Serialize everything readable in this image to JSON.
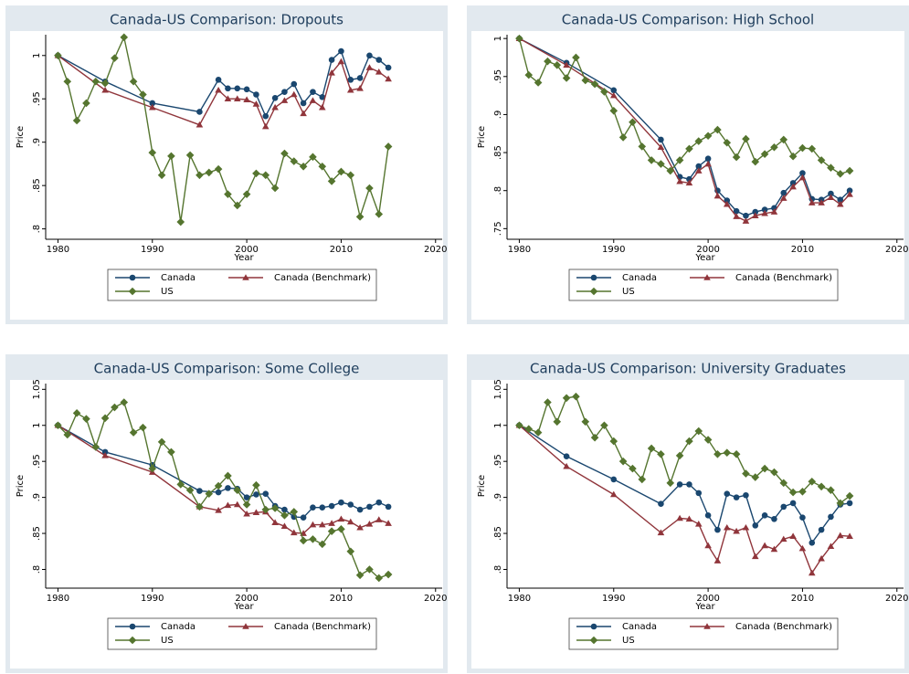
{
  "chart_data": [
    {
      "type": "line",
      "title": "Canada-US Comparison: Dropouts",
      "xlabel": "Year",
      "ylabel": "Price",
      "xlim": [
        1978.7,
        2020.7
      ],
      "ylim": [
        0.788,
        1.024
      ],
      "xticks": [
        1980,
        1990,
        2000,
        2010,
        2020
      ],
      "yticks": [
        {
          "value": 0.8,
          "label": ".8"
        },
        {
          "value": 0.85,
          "label": ".85"
        },
        {
          "value": 0.9,
          "label": ".9"
        },
        {
          "value": 0.95,
          "label": ".95"
        },
        1
      ],
      "grid": false,
      "series": [
        {
          "name": "Canada",
          "color": "#1a476f",
          "marker": "circle",
          "x": [
            1980,
            1985,
            1990,
            1995,
            1997,
            1998,
            1999,
            2000,
            2001,
            2002,
            2003,
            2004,
            2005,
            2006,
            2007,
            2008,
            2009,
            2010,
            2011,
            2012,
            2013,
            2014,
            2015
          ],
          "values": [
            1,
            0.97,
            0.945,
            0.935,
            0.972,
            0.962,
            0.962,
            0.961,
            0.955,
            0.93,
            0.951,
            0.958,
            0.967,
            0.945,
            0.958,
            0.952,
            0.995,
            1.005,
            0.972,
            0.974,
            1.0,
            0.995,
            0.986
          ]
        },
        {
          "name": "Canada (Benchmark)",
          "color": "#90353b",
          "marker": "triangle",
          "x": [
            1980,
            1985,
            1990,
            1995,
            1997,
            1998,
            1999,
            2000,
            2001,
            2002,
            2003,
            2004,
            2005,
            2006,
            2007,
            2008,
            2009,
            2010,
            2011,
            2012,
            2013,
            2014,
            2015
          ],
          "values": [
            1,
            0.96,
            0.94,
            0.92,
            0.96,
            0.95,
            0.95,
            0.949,
            0.944,
            0.918,
            0.94,
            0.948,
            0.955,
            0.933,
            0.948,
            0.94,
            0.98,
            0.993,
            0.96,
            0.962,
            0.986,
            0.981,
            0.973
          ]
        },
        {
          "name": "US",
          "color": "#55752f",
          "marker": "diamond",
          "x": [
            1980,
            1981,
            1982,
            1983,
            1984,
            1985,
            1986,
            1987,
            1988,
            1989,
            1990,
            1991,
            1992,
            1993,
            1994,
            1995,
            1996,
            1997,
            1998,
            1999,
            2000,
            2001,
            2002,
            2003,
            2004,
            2005,
            2006,
            2007,
            2008,
            2009,
            2010,
            2011,
            2012,
            2013,
            2014,
            2015
          ],
          "values": [
            1.0,
            0.97,
            0.925,
            0.945,
            0.97,
            0.968,
            0.997,
            1.021,
            0.97,
            0.955,
            0.888,
            0.862,
            0.884,
            0.808,
            0.885,
            0.862,
            0.865,
            0.869,
            0.84,
            0.827,
            0.84,
            0.864,
            0.862,
            0.847,
            0.887,
            0.878,
            0.872,
            0.883,
            0.872,
            0.855,
            0.866,
            0.862,
            0.814,
            0.847,
            0.817,
            0.895
          ]
        }
      ]
    },
    {
      "type": "line",
      "title": "Canada-US Comparison: High School",
      "xlabel": "Year",
      "ylabel": "Price",
      "xlim": [
        1978.7,
        2020.7
      ],
      "ylim": [
        0.736,
        1.005
      ],
      "xticks": [
        1980,
        1990,
        2000,
        2010,
        2020
      ],
      "yticks": [
        {
          "value": 0.75,
          "label": ".75"
        },
        {
          "value": 0.8,
          "label": ".8"
        },
        {
          "value": 0.85,
          "label": ".85"
        },
        {
          "value": 0.9,
          "label": ".9"
        },
        {
          "value": 0.95,
          "label": ".95"
        },
        1
      ],
      "grid": false,
      "series": [
        {
          "name": "Canada",
          "color": "#1a476f",
          "marker": "circle",
          "x": [
            1980,
            1985,
            1990,
            1995,
            1997,
            1998,
            1999,
            2000,
            2001,
            2002,
            2003,
            2004,
            2005,
            2006,
            2007,
            2008,
            2009,
            2010,
            2011,
            2012,
            2013,
            2014,
            2015
          ],
          "values": [
            1,
            0.968,
            0.932,
            0.867,
            0.818,
            0.815,
            0.832,
            0.842,
            0.8,
            0.787,
            0.773,
            0.767,
            0.772,
            0.775,
            0.777,
            0.797,
            0.81,
            0.823,
            0.789,
            0.788,
            0.796,
            0.788,
            0.8
          ]
        },
        {
          "name": "Canada (Benchmark)",
          "color": "#90353b",
          "marker": "triangle",
          "x": [
            1980,
            1985,
            1990,
            1995,
            1997,
            1998,
            1999,
            2000,
            2001,
            2002,
            2003,
            2004,
            2005,
            2006,
            2007,
            2008,
            2009,
            2010,
            2011,
            2012,
            2013,
            2014,
            2015
          ],
          "values": [
            1,
            0.965,
            0.925,
            0.857,
            0.812,
            0.81,
            0.826,
            0.835,
            0.793,
            0.782,
            0.766,
            0.76,
            0.767,
            0.77,
            0.772,
            0.79,
            0.805,
            0.817,
            0.784,
            0.784,
            0.791,
            0.782,
            0.795
          ]
        },
        {
          "name": "US",
          "color": "#55752f",
          "marker": "diamond",
          "x": [
            1980,
            1981,
            1982,
            1983,
            1984,
            1985,
            1986,
            1987,
            1988,
            1989,
            1990,
            1991,
            1992,
            1993,
            1994,
            1995,
            1996,
            1997,
            1998,
            1999,
            2000,
            2001,
            2002,
            2003,
            2004,
            2005,
            2006,
            2007,
            2008,
            2009,
            2010,
            2011,
            2012,
            2013,
            2014,
            2015
          ],
          "values": [
            1.0,
            0.952,
            0.942,
            0.97,
            0.965,
            0.948,
            0.975,
            0.945,
            0.94,
            0.93,
            0.905,
            0.87,
            0.89,
            0.858,
            0.84,
            0.835,
            0.826,
            0.84,
            0.855,
            0.865,
            0.872,
            0.88,
            0.863,
            0.844,
            0.868,
            0.838,
            0.848,
            0.857,
            0.867,
            0.845,
            0.856,
            0.855,
            0.84,
            0.83,
            0.822,
            0.826
          ]
        }
      ]
    },
    {
      "type": "line",
      "title": "Canada-US Comparison: Some College",
      "xlabel": "Year",
      "ylabel": "Price",
      "xlim": [
        1978.7,
        2020.7
      ],
      "ylim": [
        0.774,
        1.058
      ],
      "xticks": [
        1980,
        1990,
        2000,
        2010,
        2020
      ],
      "yticks": [
        {
          "value": 0.8,
          "label": ".8"
        },
        {
          "value": 0.85,
          "label": ".85"
        },
        {
          "value": 0.9,
          "label": ".9"
        },
        {
          "value": 0.95,
          "label": ".95"
        },
        1,
        {
          "value": 1.05,
          "label": "1.05"
        }
      ],
      "grid": false,
      "series": [
        {
          "name": "Canada",
          "color": "#1a476f",
          "marker": "circle",
          "x": [
            1980,
            1985,
            1990,
            1995,
            1997,
            1998,
            1999,
            2000,
            2001,
            2002,
            2003,
            2004,
            2005,
            2006,
            2007,
            2008,
            2009,
            2010,
            2011,
            2012,
            2013,
            2014,
            2015
          ],
          "values": [
            1,
            0.963,
            0.945,
            0.909,
            0.907,
            0.913,
            0.912,
            0.9,
            0.904,
            0.905,
            0.888,
            0.883,
            0.873,
            0.872,
            0.886,
            0.886,
            0.888,
            0.893,
            0.89,
            0.883,
            0.887,
            0.893,
            0.887
          ]
        },
        {
          "name": "Canada (Benchmark)",
          "color": "#90353b",
          "marker": "triangle",
          "x": [
            1980,
            1985,
            1990,
            1995,
            1997,
            1998,
            1999,
            2000,
            2001,
            2002,
            2003,
            2004,
            2005,
            2006,
            2007,
            2008,
            2009,
            2010,
            2011,
            2012,
            2013,
            2014,
            2015
          ],
          "values": [
            1,
            0.958,
            0.935,
            0.887,
            0.882,
            0.889,
            0.89,
            0.877,
            0.879,
            0.88,
            0.865,
            0.86,
            0.851,
            0.85,
            0.862,
            0.862,
            0.864,
            0.87,
            0.866,
            0.858,
            0.863,
            0.869,
            0.864
          ]
        },
        {
          "name": "US",
          "color": "#55752f",
          "marker": "diamond",
          "x": [
            1980,
            1981,
            1982,
            1983,
            1984,
            1985,
            1986,
            1987,
            1988,
            1989,
            1990,
            1991,
            1992,
            1993,
            1994,
            1995,
            1996,
            1997,
            1998,
            1999,
            2000,
            2001,
            2002,
            2003,
            2004,
            2005,
            2006,
            2007,
            2008,
            2009,
            2010,
            2011,
            2012,
            2013,
            2014,
            2015
          ],
          "values": [
            1.0,
            0.987,
            1.017,
            1.009,
            0.97,
            1.01,
            1.025,
            1.032,
            0.99,
            0.997,
            0.94,
            0.977,
            0.963,
            0.918,
            0.91,
            0.887,
            0.905,
            0.916,
            0.93,
            0.91,
            0.89,
            0.917,
            0.883,
            0.885,
            0.875,
            0.88,
            0.84,
            0.842,
            0.835,
            0.853,
            0.856,
            0.825,
            0.792,
            0.8,
            0.788,
            0.793
          ]
        }
      ]
    },
    {
      "type": "line",
      "title": "Canada-US Comparison: University Graduates",
      "xlabel": "Year",
      "ylabel": "Price",
      "xlim": [
        1978.7,
        2020.7
      ],
      "ylim": [
        0.774,
        1.058
      ],
      "xticks": [
        1980,
        1990,
        2000,
        2010,
        2020
      ],
      "yticks": [
        {
          "value": 0.8,
          "label": ".8"
        },
        {
          "value": 0.85,
          "label": ".85"
        },
        {
          "value": 0.9,
          "label": ".9"
        },
        {
          "value": 0.95,
          "label": ".95"
        },
        1,
        {
          "value": 1.05,
          "label": "1.05"
        }
      ],
      "grid": false,
      "series": [
        {
          "name": "Canada",
          "color": "#1a476f",
          "marker": "circle",
          "x": [
            1980,
            1985,
            1990,
            1995,
            1997,
            1998,
            1999,
            2000,
            2001,
            2002,
            2003,
            2004,
            2005,
            2006,
            2007,
            2008,
            2009,
            2010,
            2011,
            2012,
            2013,
            2014,
            2015
          ],
          "values": [
            1,
            0.957,
            0.925,
            0.891,
            0.918,
            0.918,
            0.906,
            0.875,
            0.855,
            0.905,
            0.9,
            0.903,
            0.861,
            0.875,
            0.87,
            0.887,
            0.892,
            0.872,
            0.837,
            0.855,
            0.873,
            0.89,
            0.892
          ]
        },
        {
          "name": "Canada (Benchmark)",
          "color": "#90353b",
          "marker": "triangle",
          "x": [
            1980,
            1985,
            1990,
            1995,
            1997,
            1998,
            1999,
            2000,
            2001,
            2002,
            2003,
            2004,
            2005,
            2006,
            2007,
            2008,
            2009,
            2010,
            2011,
            2012,
            2013,
            2014,
            2015
          ],
          "values": [
            1,
            0.943,
            0.904,
            0.851,
            0.871,
            0.87,
            0.863,
            0.833,
            0.812,
            0.858,
            0.853,
            0.858,
            0.818,
            0.833,
            0.828,
            0.842,
            0.846,
            0.829,
            0.795,
            0.815,
            0.832,
            0.847,
            0.846
          ]
        },
        {
          "name": "US",
          "color": "#55752f",
          "marker": "diamond",
          "x": [
            1980,
            1981,
            1982,
            1983,
            1984,
            1985,
            1986,
            1987,
            1988,
            1989,
            1990,
            1991,
            1992,
            1993,
            1994,
            1995,
            1996,
            1997,
            1998,
            1999,
            2000,
            2001,
            2002,
            2003,
            2004,
            2005,
            2006,
            2007,
            2008,
            2009,
            2010,
            2011,
            2012,
            2013,
            2014,
            2015
          ],
          "values": [
            1.0,
            0.995,
            0.99,
            1.032,
            1.005,
            1.038,
            1.04,
            1.005,
            0.983,
            1.0,
            0.978,
            0.95,
            0.94,
            0.925,
            0.968,
            0.96,
            0.92,
            0.958,
            0.978,
            0.992,
            0.98,
            0.96,
            0.962,
            0.96,
            0.933,
            0.928,
            0.94,
            0.935,
            0.92,
            0.907,
            0.908,
            0.922,
            0.915,
            0.91,
            0.892,
            0.902
          ]
        }
      ]
    }
  ]
}
